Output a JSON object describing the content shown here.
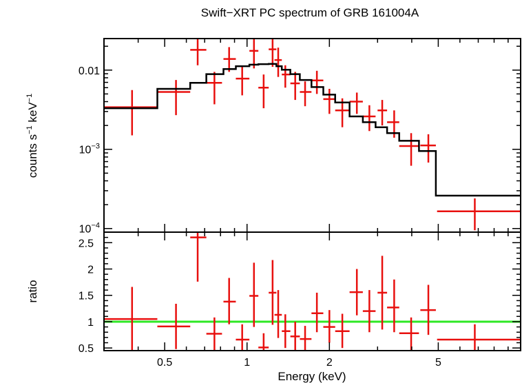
{
  "chart_data": {
    "title": "Swift−XRT PC spectrum of GRB 161004A",
    "type": "scatter",
    "xlabel": "Energy (keV)",
    "xscale": "log",
    "xlim": [
      0.3,
      10
    ],
    "x_ticks": [
      {
        "value": 0.5,
        "label": "0.5"
      },
      {
        "value": 1,
        "label": "1"
      },
      {
        "value": 2,
        "label": "2"
      },
      {
        "value": 5,
        "label": "5"
      }
    ],
    "spectrum_panel": {
      "ylabel_main": "counts s",
      "ylabel_sup1": "−1",
      "ylabel_mid": " keV",
      "ylabel_sup2": "−1",
      "yscale": "log",
      "ylim": [
        9e-05,
        0.025
      ],
      "y_ticks": [
        {
          "value": 0.01,
          "label": "0.01",
          "base": "",
          "exp": ""
        },
        {
          "value": 0.001,
          "label": "",
          "base": "10",
          "exp": "−3"
        },
        {
          "value": 0.0001,
          "label": "",
          "base": "10",
          "exp": "−4"
        }
      ],
      "data": [
        {
          "x": 0.38,
          "xlo": 0.3,
          "xhi": 0.47,
          "y": 0.0034,
          "ylo": 0.0015,
          "yhi": 0.0056
        },
        {
          "x": 0.55,
          "xlo": 0.47,
          "xhi": 0.62,
          "y": 0.0053,
          "ylo": 0.0027,
          "yhi": 0.0075
        },
        {
          "x": 0.66,
          "xlo": 0.62,
          "xhi": 0.71,
          "y": 0.018,
          "ylo": 0.0115,
          "yhi": 0.025
        },
        {
          "x": 0.76,
          "xlo": 0.71,
          "xhi": 0.81,
          "y": 0.0069,
          "ylo": 0.0037,
          "yhi": 0.0095
        },
        {
          "x": 0.86,
          "xlo": 0.82,
          "xhi": 0.91,
          "y": 0.0138,
          "ylo": 0.0095,
          "yhi": 0.0195
        },
        {
          "x": 0.96,
          "xlo": 0.91,
          "xhi": 1.02,
          "y": 0.0078,
          "ylo": 0.0048,
          "yhi": 0.011
        },
        {
          "x": 1.06,
          "xlo": 1.02,
          "xhi": 1.1,
          "y": 0.0175,
          "ylo": 0.0105,
          "yhi": 0.025
        },
        {
          "x": 1.15,
          "xlo": 1.1,
          "xhi": 1.2,
          "y": 0.006,
          "ylo": 0.0033,
          "yhi": 0.0088
        },
        {
          "x": 1.24,
          "xlo": 1.2,
          "xhi": 1.28,
          "y": 0.0183,
          "ylo": 0.011,
          "yhi": 0.025
        },
        {
          "x": 1.3,
          "xlo": 1.26,
          "xhi": 1.34,
          "y": 0.0134,
          "ylo": 0.0082,
          "yhi": 0.0192
        },
        {
          "x": 1.38,
          "xlo": 1.34,
          "xhi": 1.44,
          "y": 0.0088,
          "ylo": 0.006,
          "yhi": 0.0115
        },
        {
          "x": 1.5,
          "xlo": 1.44,
          "xhi": 1.56,
          "y": 0.0068,
          "ylo": 0.0042,
          "yhi": 0.0095
        },
        {
          "x": 1.63,
          "xlo": 1.56,
          "xhi": 1.72,
          "y": 0.0053,
          "ylo": 0.0035,
          "yhi": 0.0072
        },
        {
          "x": 1.8,
          "xlo": 1.72,
          "xhi": 1.9,
          "y": 0.0074,
          "ylo": 0.005,
          "yhi": 0.0098
        },
        {
          "x": 2.0,
          "xlo": 1.9,
          "xhi": 2.1,
          "y": 0.0043,
          "ylo": 0.0028,
          "yhi": 0.0058
        },
        {
          "x": 2.23,
          "xlo": 2.1,
          "xhi": 2.37,
          "y": 0.0031,
          "ylo": 0.0019,
          "yhi": 0.0044
        },
        {
          "x": 2.52,
          "xlo": 2.37,
          "xhi": 2.65,
          "y": 0.004,
          "ylo": 0.0028,
          "yhi": 0.0052
        },
        {
          "x": 2.8,
          "xlo": 2.65,
          "xhi": 2.95,
          "y": 0.0026,
          "ylo": 0.0017,
          "yhi": 0.0036
        },
        {
          "x": 3.12,
          "xlo": 3.0,
          "xhi": 3.25,
          "y": 0.0031,
          "ylo": 0.002,
          "yhi": 0.0042
        },
        {
          "x": 3.45,
          "xlo": 3.25,
          "xhi": 3.6,
          "y": 0.0022,
          "ylo": 0.0014,
          "yhi": 0.0031
        },
        {
          "x": 3.98,
          "xlo": 3.6,
          "xhi": 4.25,
          "y": 0.0011,
          "ylo": 0.00062,
          "yhi": 0.0016
        },
        {
          "x": 4.6,
          "xlo": 4.3,
          "xhi": 4.9,
          "y": 0.00112,
          "ylo": 0.00068,
          "yhi": 0.00155
        },
        {
          "x": 6.8,
          "xlo": 4.95,
          "xhi": 10.0,
          "y": 0.000165,
          "ylo": 9.5e-05,
          "yhi": 0.00024
        }
      ],
      "model": {
        "edges": [
          0.3,
          0.47,
          0.62,
          0.71,
          0.82,
          0.91,
          1.02,
          1.1,
          1.2,
          1.28,
          1.34,
          1.44,
          1.56,
          1.72,
          1.9,
          2.1,
          2.37,
          2.65,
          2.95,
          3.25,
          3.6,
          4.25,
          4.9,
          10.0
        ],
        "values": [
          0.0033,
          0.0058,
          0.0069,
          0.0089,
          0.0103,
          0.0112,
          0.0117,
          0.0119,
          0.012,
          0.0112,
          0.0101,
          0.0089,
          0.0075,
          0.0061,
          0.0049,
          0.0039,
          0.0026,
          0.0022,
          0.0019,
          0.0016,
          0.00128,
          0.00095,
          0.00026
        ]
      }
    },
    "ratio_panel": {
      "ylabel": "ratio",
      "ylim": [
        0.45,
        2.7
      ],
      "y_ticks": [
        {
          "value": 0.5,
          "label": "0.5"
        },
        {
          "value": 1,
          "label": "1"
        },
        {
          "value": 1.5,
          "label": "1.5"
        },
        {
          "value": 2,
          "label": "2"
        },
        {
          "value": 2.5,
          "label": "2.5"
        }
      ],
      "reference_line": 1,
      "data": [
        {
          "x": 0.38,
          "xlo": 0.3,
          "xhi": 0.47,
          "y": 1.05,
          "ylo": 0.45,
          "yhi": 1.66
        },
        {
          "x": 0.55,
          "xlo": 0.47,
          "xhi": 0.62,
          "y": 0.91,
          "ylo": 0.48,
          "yhi": 1.34
        },
        {
          "x": 0.66,
          "xlo": 0.62,
          "xhi": 0.71,
          "y": 2.6,
          "ylo": 1.76,
          "yhi": 2.7
        },
        {
          "x": 0.76,
          "xlo": 0.71,
          "xhi": 0.81,
          "y": 0.77,
          "ylo": 0.45,
          "yhi": 1.08
        },
        {
          "x": 0.86,
          "xlo": 0.82,
          "xhi": 0.91,
          "y": 1.38,
          "ylo": 0.95,
          "yhi": 1.83
        },
        {
          "x": 0.96,
          "xlo": 0.91,
          "xhi": 1.02,
          "y": 0.66,
          "ylo": 0.45,
          "yhi": 0.95
        },
        {
          "x": 1.06,
          "xlo": 1.02,
          "xhi": 1.1,
          "y": 1.49,
          "ylo": 0.9,
          "yhi": 2.12
        },
        {
          "x": 1.15,
          "xlo": 1.1,
          "xhi": 1.2,
          "y": 0.51,
          "ylo": 0.45,
          "yhi": 0.78
        },
        {
          "x": 1.24,
          "xlo": 1.2,
          "xhi": 1.28,
          "y": 1.55,
          "ylo": 0.94,
          "yhi": 2.17
        },
        {
          "x": 1.3,
          "xlo": 1.26,
          "xhi": 1.34,
          "y": 1.13,
          "ylo": 0.69,
          "yhi": 1.6
        },
        {
          "x": 1.38,
          "xlo": 1.34,
          "xhi": 1.44,
          "y": 0.82,
          "ylo": 0.5,
          "yhi": 1.14
        },
        {
          "x": 1.5,
          "xlo": 1.44,
          "xhi": 1.56,
          "y": 0.72,
          "ylo": 0.45,
          "yhi": 1.0
        },
        {
          "x": 1.63,
          "xlo": 1.56,
          "xhi": 1.72,
          "y": 0.67,
          "ylo": 0.45,
          "yhi": 0.92
        },
        {
          "x": 1.8,
          "xlo": 1.72,
          "xhi": 1.9,
          "y": 1.16,
          "ylo": 0.8,
          "yhi": 1.55
        },
        {
          "x": 2.0,
          "xlo": 1.9,
          "xhi": 2.1,
          "y": 0.9,
          "ylo": 0.6,
          "yhi": 1.22
        },
        {
          "x": 2.23,
          "xlo": 2.1,
          "xhi": 2.37,
          "y": 0.82,
          "ylo": 0.5,
          "yhi": 1.15
        },
        {
          "x": 2.52,
          "xlo": 2.37,
          "xhi": 2.65,
          "y": 1.56,
          "ylo": 1.12,
          "yhi": 2.0
        },
        {
          "x": 2.8,
          "xlo": 2.65,
          "xhi": 2.95,
          "y": 1.2,
          "ylo": 0.8,
          "yhi": 1.6
        },
        {
          "x": 3.12,
          "xlo": 3.0,
          "xhi": 3.25,
          "y": 1.55,
          "ylo": 0.85,
          "yhi": 2.25
        },
        {
          "x": 3.45,
          "xlo": 3.25,
          "xhi": 3.6,
          "y": 1.27,
          "ylo": 0.8,
          "yhi": 1.8
        },
        {
          "x": 3.98,
          "xlo": 3.6,
          "xhi": 4.25,
          "y": 0.78,
          "ylo": 0.45,
          "yhi": 1.08
        },
        {
          "x": 4.6,
          "xlo": 4.3,
          "xhi": 4.9,
          "y": 1.22,
          "ylo": 0.75,
          "yhi": 1.7
        },
        {
          "x": 6.8,
          "xlo": 4.95,
          "xhi": 10.0,
          "y": 0.66,
          "ylo": 0.45,
          "yhi": 0.95
        }
      ]
    },
    "colors": {
      "data": "#e8100e",
      "model": "#000000",
      "reference": "#2ee824",
      "axes": "#000000"
    }
  }
}
